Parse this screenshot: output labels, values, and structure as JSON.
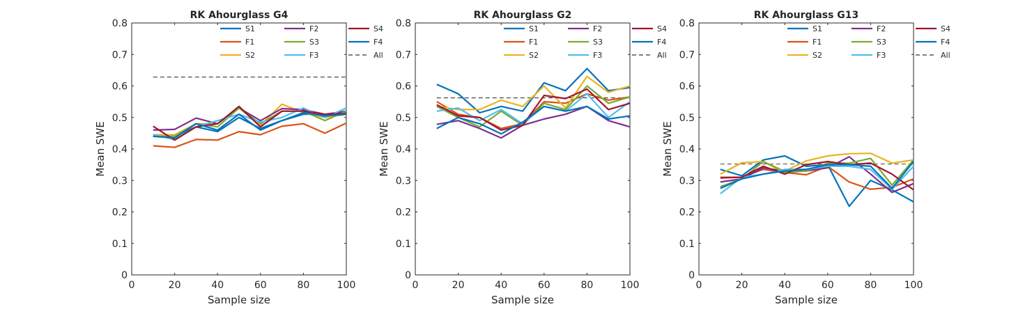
{
  "chart_data": [
    {
      "type": "line",
      "title": "RK Ahourglass G4",
      "xlabel": "Sample size",
      "ylabel": "Mean SWE",
      "xlim": [
        0,
        100
      ],
      "ylim": [
        0,
        0.8
      ],
      "x_ticks": [
        "0",
        "20",
        "40",
        "60",
        "80",
        "100"
      ],
      "y_ticks": [
        "0",
        "0.1",
        "0.2",
        "0.3",
        "0.4",
        "0.5",
        "0.6",
        "0.7",
        "0.8"
      ],
      "legend_location": "top-right",
      "x": [
        10,
        20,
        30,
        40,
        50,
        60,
        70,
        80,
        90,
        100
      ],
      "series": [
        {
          "name": "S1",
          "color": "#0072BD",
          "values": [
            0.44,
            0.44,
            0.47,
            0.455,
            0.5,
            0.465,
            0.49,
            0.51,
            0.51,
            0.515
          ]
        },
        {
          "name": "F1",
          "color": "#D95319",
          "values": [
            0.41,
            0.405,
            0.43,
            0.428,
            0.455,
            0.445,
            0.472,
            0.48,
            0.45,
            0.482
          ]
        },
        {
          "name": "S2",
          "color": "#EDB120",
          "values": [
            0.445,
            0.445,
            0.48,
            0.48,
            0.53,
            0.475,
            0.542,
            0.515,
            0.5,
            0.51
          ]
        },
        {
          "name": "F2",
          "color": "#7E2F8E",
          "values": [
            0.46,
            0.462,
            0.498,
            0.48,
            0.53,
            0.49,
            0.528,
            0.525,
            0.51,
            0.52
          ]
        },
        {
          "name": "S3",
          "color": "#77AC30",
          "values": [
            0.44,
            0.44,
            0.48,
            0.47,
            0.53,
            0.48,
            0.52,
            0.52,
            0.49,
            0.52
          ]
        },
        {
          "name": "F3",
          "color": "#4DBEEE",
          "values": [
            0.445,
            0.43,
            0.47,
            0.49,
            0.51,
            0.485,
            0.5,
            0.53,
            0.5,
            0.53
          ]
        },
        {
          "name": "S4",
          "color": "#A2142F",
          "values": [
            0.472,
            0.428,
            0.47,
            0.48,
            0.535,
            0.47,
            0.52,
            0.52,
            0.51,
            0.512
          ]
        },
        {
          "name": "F4",
          "color": "#0072BD",
          "values": [
            0.44,
            0.435,
            0.48,
            0.46,
            0.51,
            0.46,
            0.49,
            0.515,
            0.505,
            0.51
          ]
        }
      ],
      "all_line": {
        "name": "All",
        "value": 0.628
      }
    },
    {
      "type": "line",
      "title": "RK Ahourglass G2",
      "xlabel": "Sample size",
      "ylabel": "Mean SWE",
      "xlim": [
        0,
        100
      ],
      "ylim": [
        0,
        0.8
      ],
      "x_ticks": [
        "0",
        "20",
        "40",
        "60",
        "80",
        "100"
      ],
      "y_ticks": [
        "0",
        "0.1",
        "0.2",
        "0.3",
        "0.4",
        "0.5",
        "0.6",
        "0.7",
        "0.8"
      ],
      "legend_location": "top-right",
      "x": [
        10,
        20,
        30,
        40,
        50,
        60,
        70,
        80,
        90,
        100
      ],
      "series": [
        {
          "name": "S1",
          "color": "#0072BD",
          "values": [
            0.605,
            0.575,
            0.515,
            0.535,
            0.52,
            0.61,
            0.585,
            0.655,
            0.585,
            0.595
          ]
        },
        {
          "name": "F1",
          "color": "#D95319",
          "values": [
            0.55,
            0.51,
            0.5,
            0.465,
            0.48,
            0.55,
            0.545,
            0.575,
            0.555,
            0.565
          ]
        },
        {
          "name": "S2",
          "color": "#EDB120",
          "values": [
            0.535,
            0.525,
            0.525,
            0.555,
            0.535,
            0.6,
            0.53,
            0.63,
            0.58,
            0.6
          ]
        },
        {
          "name": "F2",
          "color": "#7E2F8E",
          "values": [
            0.478,
            0.49,
            0.465,
            0.435,
            0.475,
            0.495,
            0.51,
            0.535,
            0.49,
            0.47
          ]
        },
        {
          "name": "S3",
          "color": "#77AC30",
          "values": [
            0.535,
            0.5,
            0.47,
            0.52,
            0.475,
            0.545,
            0.525,
            0.6,
            0.545,
            0.565
          ]
        },
        {
          "name": "F3",
          "color": "#4DBEEE",
          "values": [
            0.52,
            0.53,
            0.49,
            0.525,
            0.48,
            0.535,
            0.52,
            0.575,
            0.5,
            0.55
          ]
        },
        {
          "name": "S4",
          "color": "#A2142F",
          "values": [
            0.54,
            0.505,
            0.5,
            0.46,
            0.475,
            0.57,
            0.56,
            0.59,
            0.525,
            0.545
          ]
        },
        {
          "name": "F4",
          "color": "#0072BD",
          "values": [
            0.465,
            0.5,
            0.48,
            0.448,
            0.485,
            0.535,
            0.52,
            0.535,
            0.495,
            0.505
          ]
        }
      ],
      "all_line": {
        "name": "All",
        "value": 0.562
      }
    },
    {
      "type": "line",
      "title": "RK Ahourglass G13",
      "xlabel": "Sample size",
      "ylabel": "Mean SWE",
      "xlim": [
        0,
        100
      ],
      "ylim": [
        0,
        0.8
      ],
      "x_ticks": [
        "0",
        "20",
        "40",
        "60",
        "80",
        "100"
      ],
      "y_ticks": [
        "0",
        "0.1",
        "0.2",
        "0.3",
        "0.4",
        "0.5",
        "0.6",
        "0.7",
        "0.8"
      ],
      "legend_location": "top-right",
      "x": [
        10,
        20,
        30,
        40,
        50,
        60,
        70,
        80,
        90,
        100
      ],
      "series": [
        {
          "name": "S1",
          "color": "#0072BD",
          "values": [
            0.335,
            0.315,
            0.365,
            0.378,
            0.345,
            0.35,
            0.218,
            0.3,
            0.27,
            0.232
          ]
        },
        {
          "name": "F1",
          "color": "#D95319",
          "values": [
            0.31,
            0.31,
            0.335,
            0.325,
            0.318,
            0.345,
            0.295,
            0.272,
            0.278,
            0.305
          ]
        },
        {
          "name": "S2",
          "color": "#EDB120",
          "values": [
            0.32,
            0.356,
            0.36,
            0.33,
            0.362,
            0.378,
            0.385,
            0.386,
            0.355,
            0.365
          ]
        },
        {
          "name": "F2",
          "color": "#7E2F8E",
          "values": [
            0.295,
            0.305,
            0.34,
            0.33,
            0.33,
            0.34,
            0.375,
            0.32,
            0.262,
            0.29
          ]
        },
        {
          "name": "S3",
          "color": "#77AC30",
          "values": [
            0.28,
            0.305,
            0.36,
            0.325,
            0.33,
            0.355,
            0.355,
            0.37,
            0.285,
            0.365
          ]
        },
        {
          "name": "F3",
          "color": "#4DBEEE",
          "values": [
            0.258,
            0.31,
            0.32,
            0.335,
            0.335,
            0.345,
            0.345,
            0.335,
            0.272,
            0.345
          ]
        },
        {
          "name": "S4",
          "color": "#A2142F",
          "values": [
            0.308,
            0.31,
            0.345,
            0.32,
            0.35,
            0.36,
            0.35,
            0.355,
            0.32,
            0.27
          ]
        },
        {
          "name": "F4",
          "color": "#0072BD",
          "values": [
            0.275,
            0.305,
            0.32,
            0.33,
            0.335,
            0.35,
            0.35,
            0.345,
            0.275,
            0.36
          ]
        }
      ],
      "all_line": {
        "name": "All",
        "value": 0.352
      }
    }
  ]
}
